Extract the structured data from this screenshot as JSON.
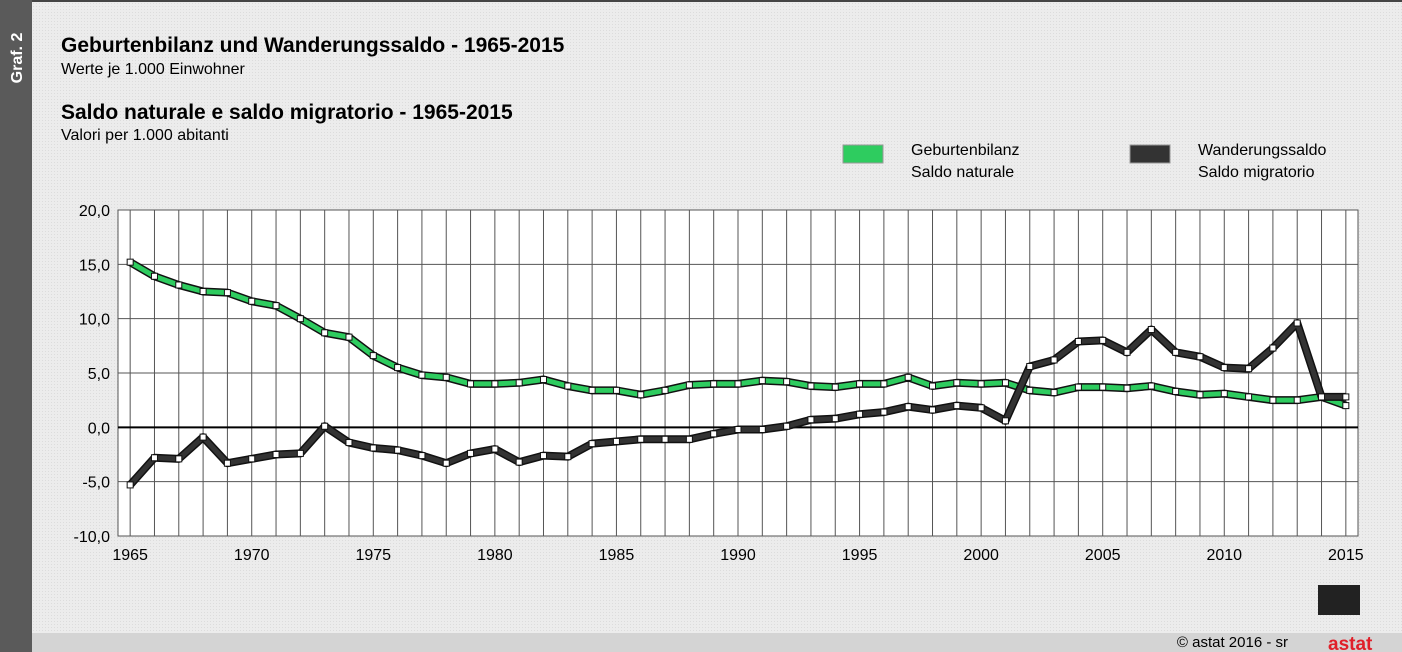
{
  "chart_data": {
    "type": "line",
    "label": "Graf. 2",
    "titles": [
      {
        "title": "Geburtenbilanz und Wanderungssaldo - 1965-2015",
        "subtitle": "Werte je 1.000 Einwohner"
      },
      {
        "title": "Saldo naturale e saldo migratorio - 1965-2015",
        "subtitle": "Valori per 1.000 abitanti"
      }
    ],
    "x": [
      1965,
      1966,
      1967,
      1968,
      1969,
      1970,
      1971,
      1972,
      1973,
      1974,
      1975,
      1976,
      1977,
      1978,
      1979,
      1980,
      1981,
      1982,
      1983,
      1984,
      1985,
      1986,
      1987,
      1988,
      1989,
      1990,
      1991,
      1992,
      1993,
      1994,
      1995,
      1996,
      1997,
      1998,
      1999,
      2000,
      2001,
      2002,
      2003,
      2004,
      2005,
      2006,
      2007,
      2008,
      2009,
      2010,
      2011,
      2012,
      2013,
      2014,
      2015
    ],
    "series": [
      {
        "name": [
          "Geburtenbilanz",
          "Saldo naturale"
        ],
        "color": "#2ecc5f",
        "values": [
          15.2,
          13.9,
          13.1,
          12.5,
          12.4,
          11.6,
          11.2,
          10.0,
          8.7,
          8.3,
          6.6,
          5.5,
          4.8,
          4.6,
          4.0,
          4.0,
          4.1,
          4.4,
          3.8,
          3.4,
          3.4,
          3.0,
          3.4,
          3.9,
          4.0,
          4.0,
          4.3,
          4.2,
          3.8,
          3.7,
          4.0,
          4.0,
          4.6,
          3.8,
          4.1,
          4.0,
          4.1,
          3.4,
          3.2,
          3.7,
          3.7,
          3.6,
          3.8,
          3.3,
          3.0,
          3.1,
          2.8,
          2.5,
          2.5,
          2.8,
          2.0
        ]
      },
      {
        "name": [
          "Wanderungssaldo",
          "Saldo migratorio"
        ],
        "color": "#333333",
        "values": [
          -5.3,
          -2.8,
          -2.9,
          -0.9,
          -3.3,
          -2.9,
          -2.5,
          -2.4,
          0.1,
          -1.4,
          -1.9,
          -2.1,
          -2.6,
          -3.3,
          -2.4,
          -2.0,
          -3.2,
          -2.6,
          -2.7,
          -1.5,
          -1.3,
          -1.1,
          -1.1,
          -1.1,
          -0.6,
          -0.2,
          -0.2,
          0.1,
          0.7,
          0.8,
          1.2,
          1.4,
          1.9,
          1.6,
          2.0,
          1.8,
          0.6,
          5.6,
          6.2,
          7.9,
          8.0,
          6.9,
          9.0,
          6.9,
          6.5,
          5.5,
          5.4,
          7.3,
          9.6,
          2.8,
          2.8
        ]
      }
    ],
    "xlim": [
      1964.5,
      2015.5
    ],
    "xticks": [
      1965,
      1970,
      1975,
      1980,
      1985,
      1990,
      1995,
      2000,
      2005,
      2010,
      2015
    ],
    "ylim": [
      -10,
      20
    ],
    "yticks": [
      {
        "value": -10,
        "label": "-10,0"
      },
      {
        "value": -5,
        "label": "-5,0"
      },
      {
        "value": 0,
        "label": "0,0"
      },
      {
        "value": 5,
        "label": "5,0"
      },
      {
        "value": 10,
        "label": "10,0"
      },
      {
        "value": 15,
        "label": "15,0"
      },
      {
        "value": 20,
        "label": "20,0"
      }
    ],
    "grid": true,
    "footer": "© astat 2016 - sr",
    "logo": "astat"
  }
}
